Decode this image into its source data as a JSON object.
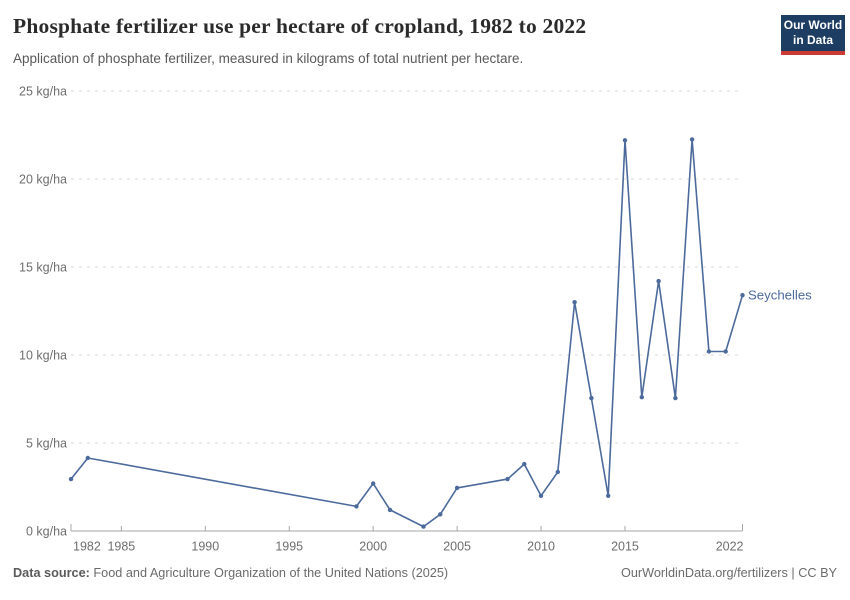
{
  "header": {
    "title": "Phosphate fertilizer use per hectare of cropland, 1982 to 2022",
    "subtitle": "Application of phosphate fertilizer, measured in kilograms of total nutrient per hectare.",
    "logo_line1": "Our World",
    "logo_line2": "in Data",
    "logo_bg": "#1d3d63",
    "logo_accent": "#cc3b33"
  },
  "footer": {
    "source_label": "Data source:",
    "source_text": "Food and Agriculture Organization of the United Nations (2025)",
    "link_text": "OurWorldinData.org/fertilizers",
    "separator": " | ",
    "license_text": "CC BY"
  },
  "chart_data": {
    "type": "line",
    "title": "Phosphate fertilizer use per hectare of cropland, 1982 to 2022",
    "ylabel_unit": " kg/ha",
    "grid": true,
    "legend_position": "end-of-line",
    "x": {
      "min": 1982,
      "max": 2022,
      "ticks": [
        1982,
        1985,
        1990,
        1995,
        2000,
        2005,
        2010,
        2015,
        2022
      ]
    },
    "y": {
      "min": 0,
      "max": 25,
      "ticks": [
        0,
        5,
        10,
        15,
        20,
        25
      ],
      "tick_suffix": " kg/ha"
    },
    "series": [
      {
        "name": "Seychelles",
        "points": [
          [
            1982,
            2.95
          ],
          [
            1983,
            4.15
          ],
          [
            1999,
            1.4
          ],
          [
            2000,
            2.7
          ],
          [
            2001,
            1.2
          ],
          [
            2003,
            0.25
          ],
          [
            2004,
            0.95
          ],
          [
            2005,
            2.45
          ],
          [
            2008,
            2.95
          ],
          [
            2009,
            3.8
          ],
          [
            2010,
            2.0
          ],
          [
            2011,
            3.35
          ],
          [
            2012,
            13.0
          ],
          [
            2013,
            7.55
          ],
          [
            2014,
            2.0
          ],
          [
            2015,
            22.2
          ],
          [
            2016,
            7.6
          ],
          [
            2017,
            14.2
          ],
          [
            2018,
            7.55
          ],
          [
            2019,
            22.25
          ],
          [
            2020,
            10.2
          ],
          [
            2021,
            10.2
          ],
          [
            2022,
            13.4
          ]
        ]
      }
    ],
    "colors": {
      "line": "#4c6a9c",
      "grid": "#d9d9d9",
      "axis": "#a5a5a5",
      "tick_text": "#6e6e6e",
      "end_label": "#4c6a9c"
    }
  }
}
